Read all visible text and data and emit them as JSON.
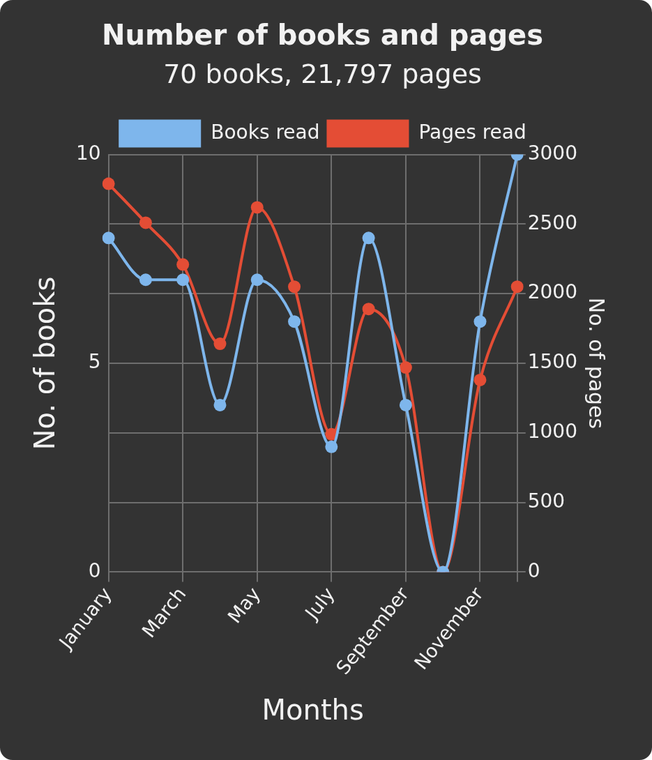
{
  "chart_data": {
    "type": "line",
    "title": "Number of books and pages",
    "subtitle": "70 books, 21,797 pages",
    "xlabel": "Months",
    "ylabel": "No. of books",
    "y2label": "No. of pages",
    "categories": [
      "January",
      null,
      "March",
      null,
      "May",
      null,
      "July",
      null,
      "September",
      null,
      "November",
      null
    ],
    "series": [
      {
        "name": "Books read",
        "color": "#7eb6ec",
        "values": [
          8,
          7,
          7,
          4,
          7,
          6,
          3,
          8,
          4,
          0,
          6,
          10
        ]
      },
      {
        "name": "Pages read",
        "color": "#e44d35",
        "axis": "y2",
        "values": [
          2790,
          2510,
          2210,
          1640,
          2620,
          2050,
          990,
          1890,
          1470,
          0,
          1380,
          2050
        ]
      }
    ],
    "ylim": [
      0,
      10
    ],
    "yticks": [
      0,
      5,
      10
    ],
    "y2lim": [
      0,
      3000
    ],
    "y2ticks": [
      0,
      500,
      1000,
      1500,
      2000,
      2500,
      3000
    ],
    "grid": true,
    "legend": "top",
    "marker": "circle",
    "line_style": "solid"
  }
}
